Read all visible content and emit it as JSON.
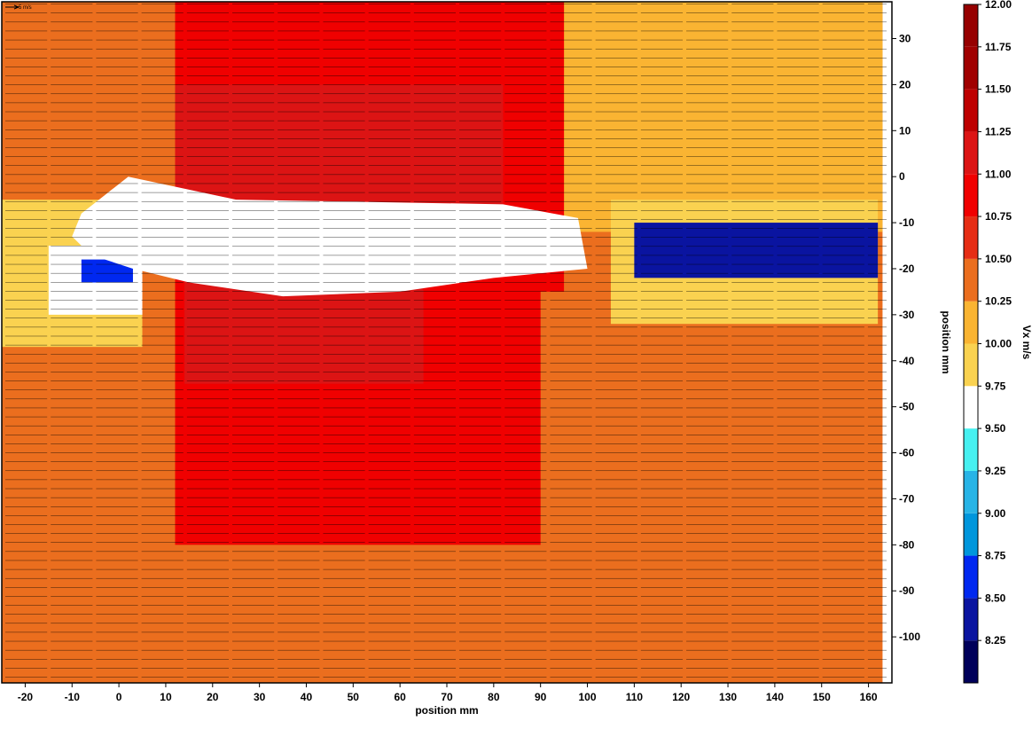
{
  "chart_data": {
    "type": "heatmap",
    "title": "",
    "xlabel": "position mm",
    "ylabel": "position mm",
    "colorbar_label": "Vx m/s",
    "reference_vector_label": "5 m/s",
    "xlim": [
      -25,
      165
    ],
    "ylim": [
      -110,
      38
    ],
    "x_ticks": [
      -20,
      -10,
      0,
      10,
      20,
      30,
      40,
      50,
      60,
      70,
      80,
      90,
      100,
      110,
      120,
      130,
      140,
      150,
      160
    ],
    "y_ticks": [
      30,
      20,
      10,
      0,
      -10,
      -20,
      -30,
      -40,
      -50,
      -60,
      -70,
      -80,
      -90,
      -100
    ],
    "y_axis_position": "right",
    "colorbar": {
      "levels": [
        8.0,
        8.25,
        8.5,
        8.75,
        9.0,
        9.25,
        9.5,
        9.75,
        10.0,
        10.25,
        10.5,
        10.75,
        11.0,
        11.25,
        11.5,
        11.75,
        12.0
      ],
      "tick_labels": [
        "8.25",
        "8.50",
        "8.75",
        "9.00",
        "9.25",
        "9.50",
        "9.75",
        "10.00",
        "10.25",
        "10.50",
        "10.75",
        "11.00",
        "11.25",
        "11.50",
        "11.75",
        "12.00"
      ],
      "colors": [
        "#00005a",
        "#0a14a0",
        "#0028f0",
        "#0096dc",
        "#28b4e6",
        "#46f0f0",
        "#ffffff",
        "#fad250",
        "#fab432",
        "#eb6e1e",
        "#e62d14",
        "#f00000",
        "#dc1414",
        "#be0000",
        "#a00000",
        "#960000"
      ]
    },
    "fields": [
      {
        "value": 10.25,
        "description": "background flow",
        "region": [
          -25,
          -110,
          163,
          38
        ]
      },
      {
        "value": 10.0,
        "region": [
          95,
          -12,
          163,
          38
        ]
      },
      {
        "value": 10.75,
        "region": [
          12,
          -25,
          95,
          38
        ]
      },
      {
        "value": 11.0,
        "region": [
          12,
          -8,
          82,
          20
        ]
      },
      {
        "value": 10.75,
        "region": [
          12,
          -80,
          90,
          -18
        ]
      },
      {
        "value": 11.0,
        "region": [
          14,
          -45,
          65,
          -22
        ]
      },
      {
        "value": 9.75,
        "region": [
          -25,
          -37,
          5,
          -5
        ]
      },
      {
        "value": 9.5,
        "region": [
          -15,
          -30,
          5,
          -15
        ]
      },
      {
        "value": 8.5,
        "region": [
          -8,
          -23,
          3,
          -18
        ]
      },
      {
        "value": 9.75,
        "region": [
          105,
          -32,
          162,
          -5
        ]
      },
      {
        "value": 8.25,
        "region": [
          110,
          -22,
          162,
          -10
        ]
      }
    ],
    "obstacle_region_mm": [
      [
        2,
        0
      ],
      [
        25,
        -5
      ],
      [
        82,
        -6
      ],
      [
        98,
        -9
      ],
      [
        100,
        -20
      ],
      [
        80,
        -22
      ],
      [
        60,
        -25
      ],
      [
        35,
        -26
      ],
      [
        15,
        -23
      ],
      [
        3,
        -20
      ],
      [
        -6,
        -17
      ],
      [
        -10,
        -13
      ],
      [
        -8,
        -8
      ],
      [
        -3,
        -4
      ]
    ],
    "vector_field": {
      "mean_vx": 10.2,
      "vy": 0,
      "spacing_mm": 1.95
    }
  }
}
